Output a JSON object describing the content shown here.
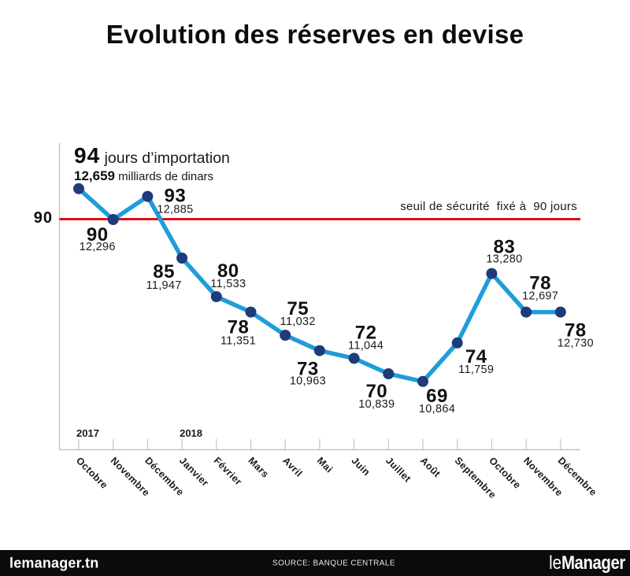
{
  "title": "Evolution des réserves en devise",
  "threshold": {
    "axis_label": "90",
    "label": "seuil de sécurité  fixé à  90 jours",
    "value": 90
  },
  "annotation": {
    "value": "94",
    "value_suffix": " jours d’importation",
    "dinars": "12,659",
    "dinars_suffix": " milliards de dinars"
  },
  "years": [
    {
      "label": "2017",
      "month_index": 0
    },
    {
      "label": "2018",
      "month_index": 3
    }
  ],
  "footer": {
    "site": "lemanager.tn",
    "source": "SOURCE: BANQUE CENTRALE",
    "logo_thin": "le",
    "logo_bold": "Manager"
  },
  "colors": {
    "line": "#1f9dd9",
    "point": "#1f3b7a",
    "threshold": "#e00d19",
    "axis": "#c6c6c6",
    "text_dark": "#111111"
  },
  "chart_data": {
    "type": "line",
    "title": "Evolution des réserves en devise",
    "x": [
      "Octobre",
      "Novembre",
      "Décembre",
      "Janvier",
      "Février",
      "Mars",
      "Avril",
      "Mai",
      "Juin",
      "Juillet",
      "Août",
      "Septembre",
      "Octobre",
      "Novembre",
      "Décembre"
    ],
    "x_years": {
      "Octobre_first": 2017,
      "Janvier_onward": 2018
    },
    "series": [
      {
        "name": "jours d'importation",
        "values": [
          94,
          90,
          93,
          85,
          80,
          78,
          75,
          73,
          72,
          70,
          69,
          74,
          83,
          78,
          78
        ]
      },
      {
        "name": "milliards de dinars",
        "values": [
          "12,659",
          "12,296",
          "12,885",
          "11,947",
          "11,533",
          "11,351",
          "11,032",
          "10,963",
          "11,044",
          "10,839",
          "10,864",
          "11,759",
          "13,280",
          "12,697",
          "12,730"
        ]
      }
    ],
    "threshold_line": {
      "value": 90,
      "label": "seuil de sécurité  fixé à  90 jours"
    },
    "ylim": [
      64,
      98
    ],
    "grid": false,
    "legend": false
  }
}
